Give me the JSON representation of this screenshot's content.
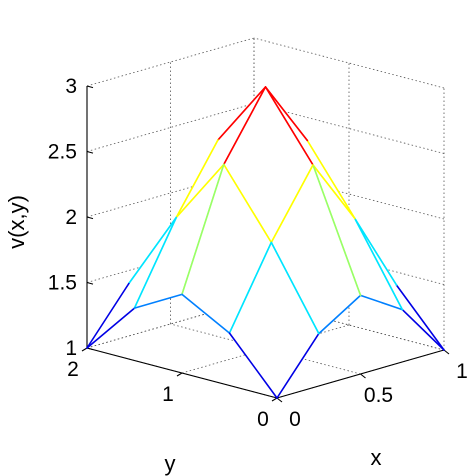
{
  "chart_data": {
    "type": "surface",
    "zlabel": "v(x,y)",
    "xlabel": "x",
    "ylabel": "y",
    "xlim": [
      0,
      1
    ],
    "ylim": [
      0,
      2
    ],
    "zlim": [
      1,
      3
    ],
    "x_ticks": [
      "0",
      "0.5",
      "1"
    ],
    "y_ticks": [
      "0",
      "1",
      "2"
    ],
    "z_ticks": [
      "1",
      "1.5",
      "2",
      "2.5",
      "3"
    ],
    "grid": true,
    "colormap": "jet",
    "x": [
      0,
      0.25,
      0.5,
      0.75,
      1
    ],
    "y": [
      0,
      0.5,
      1,
      1.5,
      2
    ],
    "z": [
      [
        1.0,
        1.4,
        1.6,
        1.4,
        1.0
      ],
      [
        1.4,
        2.0,
        2.5,
        2.0,
        1.4
      ],
      [
        1.6,
        2.5,
        3.0,
        2.5,
        1.6
      ],
      [
        1.4,
        2.0,
        2.5,
        2.0,
        1.4
      ],
      [
        1.0,
        1.4,
        1.6,
        1.4,
        1.0
      ]
    ]
  }
}
